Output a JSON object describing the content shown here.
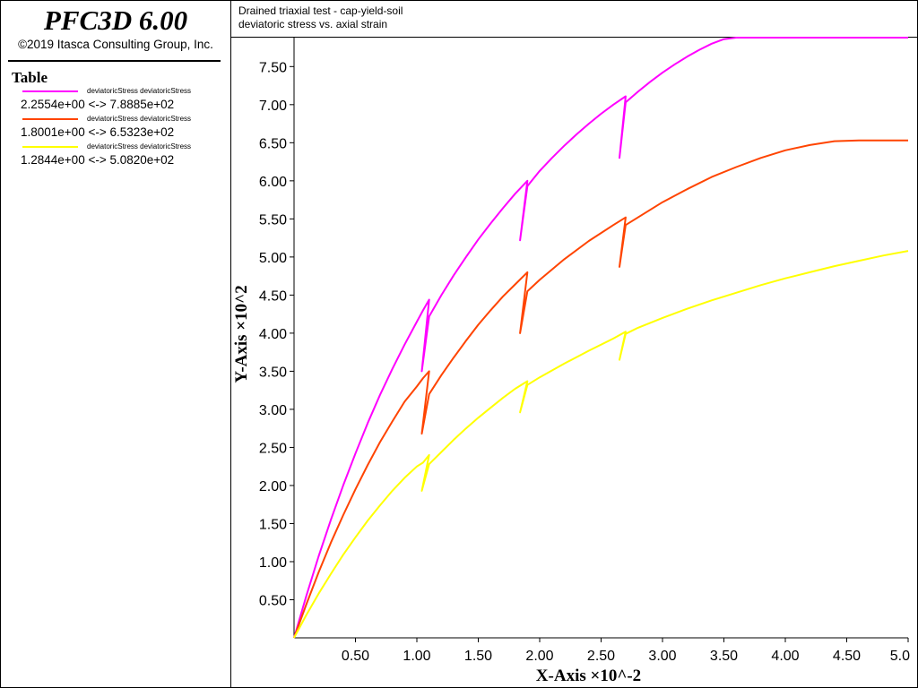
{
  "app": {
    "title": "PFC3D 6.00",
    "copyright": "©2019 Itasca Consulting Group, Inc."
  },
  "legend": {
    "heading": "Table",
    "entries": [
      {
        "label": "deviatoricStress deviatoricStress",
        "range": "2.2554e+00  <->  7.8885e+02",
        "color": "#ff00ff"
      },
      {
        "label": "deviatoricStress deviatoricStress",
        "range": "1.8001e+00  <->  6.5323e+02",
        "color": "#ff4400"
      },
      {
        "label": "deviatoricStress deviatoricStress",
        "range": "1.2844e+00  <->  5.0820e+02",
        "color": "#ffff00"
      }
    ]
  },
  "chart_data": {
    "type": "line",
    "title": "Drained triaxial test - cap-yield-soil",
    "subtitle": "deviatoric stress vs. axial strain",
    "xlabel": "X-Axis ×10^-2",
    "ylabel": "Y-Axis ×10^2",
    "xlim": [
      0.0,
      5.0
    ],
    "ylim": [
      0.0,
      7.88
    ],
    "xticks": [
      "0.50",
      "1.00",
      "1.50",
      "2.00",
      "2.50",
      "3.00",
      "3.50",
      "4.00",
      "4.50",
      "5.0"
    ],
    "yticks": [
      "0.50",
      "1.00",
      "1.50",
      "2.00",
      "2.50",
      "3.00",
      "3.50",
      "4.00",
      "4.50",
      "5.00",
      "5.50",
      "6.00",
      "6.50",
      "7.00",
      "7.50"
    ],
    "grid": false,
    "series": [
      {
        "color": "#ff00ff",
        "x": [
          0,
          0.1,
          0.2,
          0.3,
          0.4,
          0.5,
          0.6,
          0.7,
          0.8,
          0.9,
          1.0,
          1.05,
          1.1,
          1.04,
          1.1,
          1.2,
          1.3,
          1.4,
          1.5,
          1.6,
          1.7,
          1.8,
          1.9,
          1.84,
          1.9,
          2.0,
          2.1,
          2.2,
          2.3,
          2.4,
          2.5,
          2.6,
          2.7,
          2.65,
          2.7,
          2.8,
          2.9,
          3.0,
          3.1,
          3.2,
          3.3,
          3.4,
          3.5,
          3.6,
          3.7,
          4.0,
          4.5,
          5.0
        ],
        "y": [
          0,
          0.55,
          1.07,
          1.55,
          2.0,
          2.42,
          2.82,
          3.19,
          3.53,
          3.85,
          4.15,
          4.3,
          4.44,
          3.5,
          4.22,
          4.5,
          4.76,
          5.0,
          5.23,
          5.44,
          5.64,
          5.83,
          6.0,
          5.22,
          5.93,
          6.13,
          6.3,
          6.46,
          6.61,
          6.75,
          6.88,
          7.0,
          7.11,
          6.3,
          7.03,
          7.17,
          7.3,
          7.42,
          7.53,
          7.63,
          7.72,
          7.8,
          7.86,
          7.88,
          7.88,
          7.88,
          7.88,
          7.88
        ]
      },
      {
        "color": "#ff4400",
        "x": [
          0,
          0.1,
          0.2,
          0.3,
          0.4,
          0.5,
          0.6,
          0.7,
          0.8,
          0.9,
          1.0,
          1.05,
          1.1,
          1.04,
          1.1,
          1.2,
          1.3,
          1.4,
          1.5,
          1.6,
          1.7,
          1.8,
          1.9,
          1.84,
          1.9,
          2.0,
          2.2,
          2.4,
          2.6,
          2.7,
          2.65,
          2.7,
          2.8,
          3.0,
          3.2,
          3.4,
          3.6,
          3.8,
          4.0,
          4.2,
          4.4,
          4.6,
          4.7,
          4.8,
          5.0
        ],
        "y": [
          0,
          0.44,
          0.86,
          1.25,
          1.61,
          1.95,
          2.27,
          2.57,
          2.84,
          3.1,
          3.3,
          3.41,
          3.5,
          2.68,
          3.2,
          3.45,
          3.68,
          3.9,
          4.11,
          4.3,
          4.48,
          4.64,
          4.8,
          4.0,
          4.55,
          4.7,
          4.97,
          5.21,
          5.42,
          5.52,
          4.87,
          5.42,
          5.52,
          5.72,
          5.89,
          6.05,
          6.18,
          6.3,
          6.4,
          6.47,
          6.52,
          6.53,
          6.53,
          6.53,
          6.53
        ]
      },
      {
        "color": "#ffff00",
        "x": [
          0,
          0.1,
          0.2,
          0.3,
          0.4,
          0.5,
          0.6,
          0.7,
          0.8,
          0.9,
          1.0,
          1.05,
          1.1,
          1.04,
          1.1,
          1.2,
          1.3,
          1.4,
          1.5,
          1.6,
          1.7,
          1.8,
          1.9,
          1.84,
          1.9,
          2.0,
          2.2,
          2.4,
          2.6,
          2.7,
          2.65,
          2.7,
          2.8,
          3.0,
          3.2,
          3.4,
          3.6,
          3.8,
          4.0,
          4.2,
          4.4,
          4.6,
          4.8,
          5.0
        ],
        "y": [
          0,
          0.3,
          0.58,
          0.84,
          1.09,
          1.32,
          1.54,
          1.74,
          1.93,
          2.1,
          2.25,
          2.3,
          2.4,
          1.93,
          2.28,
          2.44,
          2.6,
          2.75,
          2.89,
          3.02,
          3.15,
          3.27,
          3.37,
          2.96,
          3.32,
          3.42,
          3.6,
          3.77,
          3.93,
          4.02,
          3.65,
          3.99,
          4.07,
          4.2,
          4.32,
          4.43,
          4.53,
          4.63,
          4.72,
          4.8,
          4.88,
          4.95,
          5.02,
          5.08
        ]
      }
    ]
  }
}
